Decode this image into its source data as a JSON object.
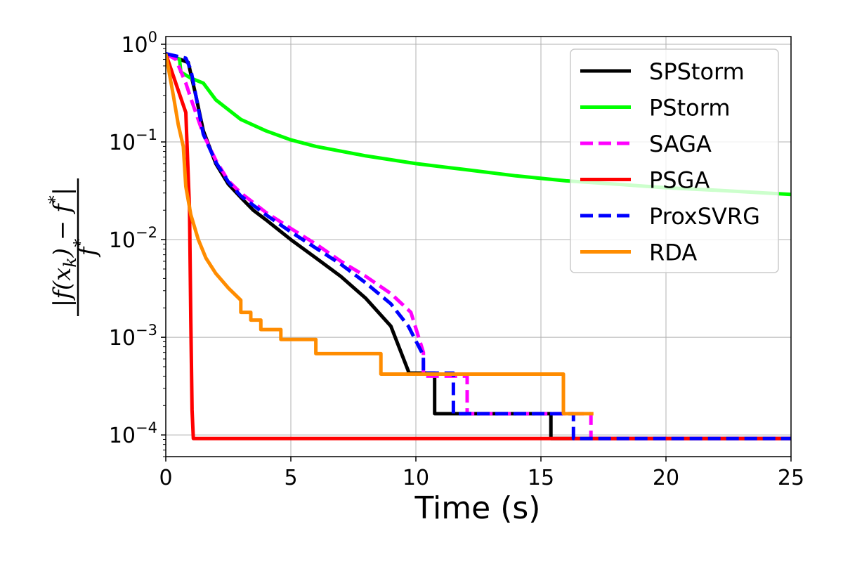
{
  "chart_data": {
    "type": "line",
    "title": "",
    "xlabel": "Time (s)",
    "ylabel_parts": {
      "numerator": "|f(x",
      "subscript": "k",
      "mid": ") − f",
      "star": "*",
      "end": "|",
      "denominator": "f",
      "denominator_star": "*"
    },
    "xlim": [
      0,
      25
    ],
    "ylim": [
      6e-05,
      1.2
    ],
    "yscale": "log",
    "grid": true,
    "legend_position": "top-right",
    "x_ticks": [
      {
        "value": 0,
        "label": "0"
      },
      {
        "value": 5,
        "label": "5"
      },
      {
        "value": 10,
        "label": "10"
      },
      {
        "value": 15,
        "label": "15"
      },
      {
        "value": 20,
        "label": "20"
      },
      {
        "value": 25,
        "label": "25"
      }
    ],
    "y_ticks": [
      {
        "value": 1,
        "base": "10",
        "exp": "0"
      },
      {
        "value": 0.1,
        "base": "10",
        "exp": "−1"
      },
      {
        "value": 0.01,
        "base": "10",
        "exp": "−2"
      },
      {
        "value": 0.001,
        "base": "10",
        "exp": "−3"
      },
      {
        "value": 0.0001,
        "base": "10",
        "exp": "−4"
      }
    ],
    "series": [
      {
        "name": "SPStorm",
        "color": "#000000",
        "dash": "solid",
        "x": [
          0,
          0.9,
          1.0,
          1.2,
          1.5,
          2.0,
          2.5,
          3.0,
          3.5,
          4.0,
          5.0,
          6.0,
          7.0,
          8.0,
          9.0,
          9.7,
          9.7,
          10.75,
          10.75,
          15.4,
          15.4,
          25
        ],
        "y": [
          0.8,
          0.65,
          0.5,
          0.3,
          0.13,
          0.06,
          0.037,
          0.027,
          0.02,
          0.016,
          0.01,
          0.0065,
          0.0042,
          0.0025,
          0.0013,
          0.00045,
          0.00043,
          0.00043,
          0.000165,
          0.000165,
          9.2e-05,
          9.2e-05
        ]
      },
      {
        "name": "PStorm",
        "color": "#00ff00",
        "dash": "solid",
        "x": [
          0,
          0.55,
          0.6,
          1.0,
          1.5,
          2.0,
          3.0,
          4.0,
          5.0,
          6.0,
          8.0,
          10.0,
          12.0,
          14.0,
          16.0,
          18.0,
          20.0,
          22.0,
          25
        ],
        "y": [
          0.8,
          0.7,
          0.52,
          0.45,
          0.4,
          0.27,
          0.17,
          0.13,
          0.105,
          0.09,
          0.072,
          0.06,
          0.052,
          0.045,
          0.04,
          0.037,
          0.034,
          0.032,
          0.029
        ]
      },
      {
        "name": "SAGA",
        "color": "#ff00ff",
        "dash": "dashed",
        "x": [
          0,
          0.4,
          0.8,
          1.0,
          1.5,
          2.0,
          2.5,
          3.0,
          4.0,
          5.0,
          6.0,
          7.0,
          8.0,
          9.0,
          9.8,
          10.3,
          10.3,
          12.05,
          12.05,
          17.0,
          17.0,
          25
        ],
        "y": [
          0.8,
          0.7,
          0.4,
          0.28,
          0.12,
          0.065,
          0.04,
          0.03,
          0.019,
          0.013,
          0.009,
          0.006,
          0.0042,
          0.0028,
          0.0018,
          0.0007,
          0.0004,
          0.0004,
          0.000165,
          0.000165,
          9.2e-05,
          9.2e-05
        ]
      },
      {
        "name": "PSGA",
        "color": "#ff0000",
        "dash": "solid",
        "x": [
          0,
          0.4,
          0.8,
          0.95,
          1.0,
          1.05,
          1.1,
          25
        ],
        "y": [
          0.8,
          0.4,
          0.2,
          0.02,
          0.0015,
          0.00018,
          9.2e-05,
          9.2e-05
        ]
      },
      {
        "name": "ProxSVRG",
        "color": "#0000ff",
        "dash": "dashed",
        "x": [
          0,
          0.8,
          1.0,
          1.2,
          1.5,
          2.0,
          2.5,
          3.0,
          4.0,
          5.0,
          6.0,
          7.0,
          8.0,
          9.0,
          9.7,
          10.3,
          10.3,
          11.5,
          11.5,
          16.3,
          16.3,
          25
        ],
        "y": [
          0.8,
          0.72,
          0.55,
          0.3,
          0.12,
          0.062,
          0.039,
          0.028,
          0.018,
          0.012,
          0.0082,
          0.0056,
          0.0036,
          0.0022,
          0.0013,
          0.00065,
          0.00043,
          0.00043,
          0.000165,
          0.000165,
          9.2e-05,
          9.2e-05
        ]
      },
      {
        "name": "RDA",
        "color": "#ff8c00",
        "dash": "solid",
        "x": [
          0,
          0.3,
          0.5,
          0.7,
          0.8,
          1.0,
          1.3,
          1.6,
          2.0,
          2.5,
          3.0,
          3.0,
          3.4,
          3.4,
          3.8,
          3.8,
          4.6,
          4.6,
          6.0,
          6.0,
          8.6,
          8.6,
          15.9,
          15.9,
          17.1
        ],
        "y": [
          0.8,
          0.3,
          0.15,
          0.09,
          0.035,
          0.018,
          0.01,
          0.0065,
          0.0045,
          0.0032,
          0.0024,
          0.0018,
          0.0018,
          0.0015,
          0.0015,
          0.0012,
          0.0012,
          0.00095,
          0.00095,
          0.00068,
          0.00068,
          0.00042,
          0.00042,
          0.000165,
          0.000165
        ]
      }
    ]
  }
}
